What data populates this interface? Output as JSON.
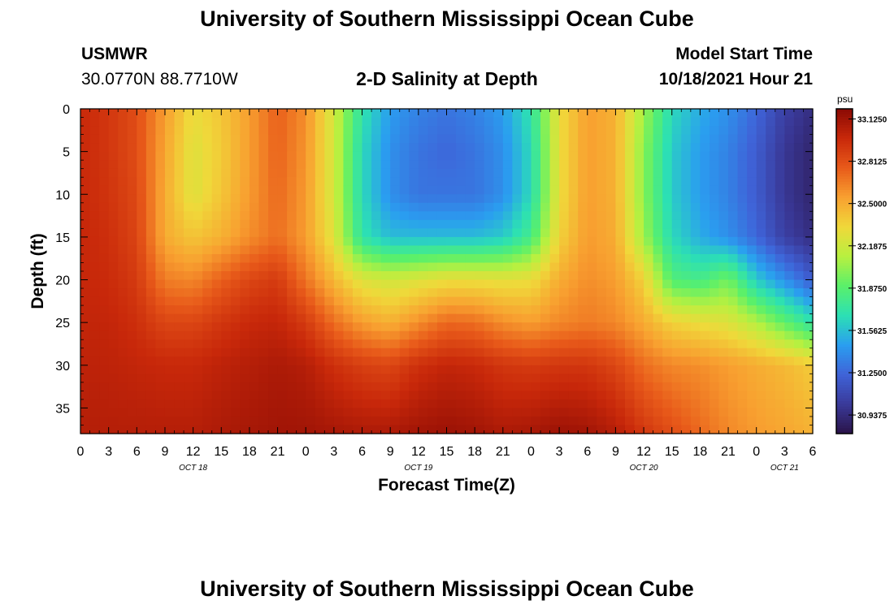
{
  "header": {
    "title": "University of Southern Mississippi Ocean Cube",
    "station_id": "USMWR",
    "station_coords": "30.0770N  88.7710W",
    "plot_title": "2-D Salinity at Depth",
    "model_start_label": "Model Start Time",
    "model_start_value": "10/18/2021 Hour 21"
  },
  "footer": {
    "title": "University of Southern Mississippi Ocean Cube"
  },
  "chart_data": {
    "type": "heatmap",
    "title": "2-D Salinity at Depth",
    "xlabel": "Forecast Time(Z)",
    "ylabel": "Depth (ft)",
    "x_tick_labels": [
      "0",
      "3",
      "6",
      "9",
      "12",
      "15",
      "18",
      "21",
      "0",
      "3",
      "6",
      "9",
      "12",
      "15",
      "18",
      "21",
      "0",
      "3",
      "6",
      "9",
      "12",
      "15",
      "18",
      "21",
      "0",
      "3",
      "6"
    ],
    "date_labels": [
      "OCT 18",
      "OCT 19",
      "OCT 20",
      "OCT 21"
    ],
    "x_range_hours": [
      0,
      78
    ],
    "y_ticks": [
      0,
      5,
      10,
      15,
      20,
      25,
      30,
      35
    ],
    "ylim": [
      0,
      38
    ],
    "y_inverted": true,
    "colorbar": {
      "unit": "psu",
      "min": 30.8,
      "max": 33.2,
      "tick_labels": [
        "33.1250",
        "32.8125",
        "32.5000",
        "32.1875",
        "31.8750",
        "31.5625",
        "31.2500",
        "30.9375"
      ],
      "tick_values": [
        33.125,
        32.8125,
        32.5,
        32.1875,
        31.875,
        31.5625,
        31.25,
        30.9375
      ],
      "colors": [
        "#2a1348",
        "#3a3a9a",
        "#3f63d8",
        "#2a9ef0",
        "#2ce0b4",
        "#5af06a",
        "#b8f040",
        "#f0d83a",
        "#f8a030",
        "#e85a1a",
        "#c8280a",
        "#8a0a04"
      ]
    },
    "profiles": [
      {
        "hour": 0,
        "values": [
          32.98,
          32.98,
          32.98,
          32.99,
          32.99,
          33.0,
          33.02,
          33.05
        ]
      },
      {
        "hour": 3,
        "values": [
          32.92,
          32.92,
          32.93,
          32.95,
          32.97,
          33.0,
          33.02,
          33.05
        ]
      },
      {
        "hour": 6,
        "values": [
          32.82,
          32.82,
          32.84,
          32.86,
          32.9,
          32.95,
          33.0,
          33.05
        ]
      },
      {
        "hour": 9,
        "values": [
          32.55,
          32.52,
          32.5,
          32.5,
          32.65,
          32.85,
          32.98,
          33.05
        ]
      },
      {
        "hour": 12,
        "values": [
          32.3,
          32.25,
          32.25,
          32.4,
          32.62,
          32.85,
          32.98,
          33.05
        ]
      },
      {
        "hour": 15,
        "values": [
          32.4,
          32.38,
          32.4,
          32.48,
          32.75,
          32.92,
          33.02,
          33.08
        ]
      },
      {
        "hour": 18,
        "values": [
          32.55,
          32.55,
          32.56,
          32.6,
          32.85,
          32.98,
          33.05,
          33.1
        ]
      },
      {
        "hour": 21,
        "values": [
          32.75,
          32.74,
          32.72,
          32.7,
          32.9,
          33.0,
          33.08,
          33.12
        ]
      },
      {
        "hour": 24,
        "values": [
          32.6,
          32.58,
          32.56,
          32.55,
          32.68,
          32.9,
          33.05,
          33.12
        ]
      },
      {
        "hour": 27,
        "values": [
          32.2,
          32.2,
          32.2,
          32.25,
          32.45,
          32.7,
          32.95,
          33.1
        ]
      },
      {
        "hour": 30,
        "values": [
          31.7,
          31.65,
          31.65,
          31.7,
          32.25,
          32.55,
          32.88,
          33.08
        ]
      },
      {
        "hour": 33,
        "values": [
          31.45,
          31.4,
          31.4,
          31.55,
          32.2,
          32.48,
          32.85,
          33.08
        ]
      },
      {
        "hour": 36,
        "values": [
          31.35,
          31.3,
          31.3,
          31.55,
          32.25,
          32.6,
          32.95,
          33.12
        ]
      },
      {
        "hour": 39,
        "values": [
          31.3,
          31.25,
          31.3,
          31.55,
          32.3,
          32.72,
          33.0,
          33.14
        ]
      },
      {
        "hour": 42,
        "values": [
          31.35,
          31.3,
          31.3,
          31.55,
          32.3,
          32.7,
          32.98,
          33.12
        ]
      },
      {
        "hour": 45,
        "values": [
          31.45,
          31.4,
          31.4,
          31.6,
          32.28,
          32.6,
          32.92,
          33.08
        ]
      },
      {
        "hour": 48,
        "values": [
          31.7,
          31.65,
          31.65,
          31.8,
          32.3,
          32.55,
          32.9,
          33.1
        ]
      },
      {
        "hour": 51,
        "values": [
          32.3,
          32.3,
          32.3,
          32.35,
          32.5,
          32.62,
          32.92,
          33.14
        ]
      },
      {
        "hour": 54,
        "values": [
          32.55,
          32.55,
          32.55,
          32.56,
          32.6,
          32.66,
          32.92,
          33.12
        ]
      },
      {
        "hour": 57,
        "values": [
          32.48,
          32.48,
          32.48,
          32.5,
          32.55,
          32.62,
          32.85,
          33.05
        ]
      },
      {
        "hour": 60,
        "values": [
          32.05,
          32.0,
          32.0,
          32.05,
          32.35,
          32.5,
          32.7,
          32.92
        ]
      },
      {
        "hour": 63,
        "values": [
          31.65,
          31.6,
          31.6,
          31.65,
          31.85,
          32.35,
          32.62,
          32.82
        ]
      },
      {
        "hour": 66,
        "values": [
          31.5,
          31.45,
          31.45,
          31.5,
          31.8,
          32.3,
          32.6,
          32.72
        ]
      },
      {
        "hour": 69,
        "values": [
          31.4,
          31.35,
          31.35,
          31.4,
          31.95,
          32.25,
          32.55,
          32.62
        ]
      },
      {
        "hour": 72,
        "values": [
          31.25,
          31.2,
          31.2,
          31.25,
          31.6,
          32.1,
          32.5,
          32.56
        ]
      },
      {
        "hour": 75,
        "values": [
          31.05,
          31.0,
          31.0,
          31.05,
          31.4,
          31.9,
          32.45,
          32.52
        ]
      },
      {
        "hour": 78,
        "values": [
          30.95,
          30.9,
          30.9,
          30.95,
          31.2,
          31.7,
          32.38,
          32.48
        ]
      }
    ],
    "profile_depths": [
      0,
      5,
      10,
      15,
      20,
      25,
      30,
      38
    ]
  }
}
